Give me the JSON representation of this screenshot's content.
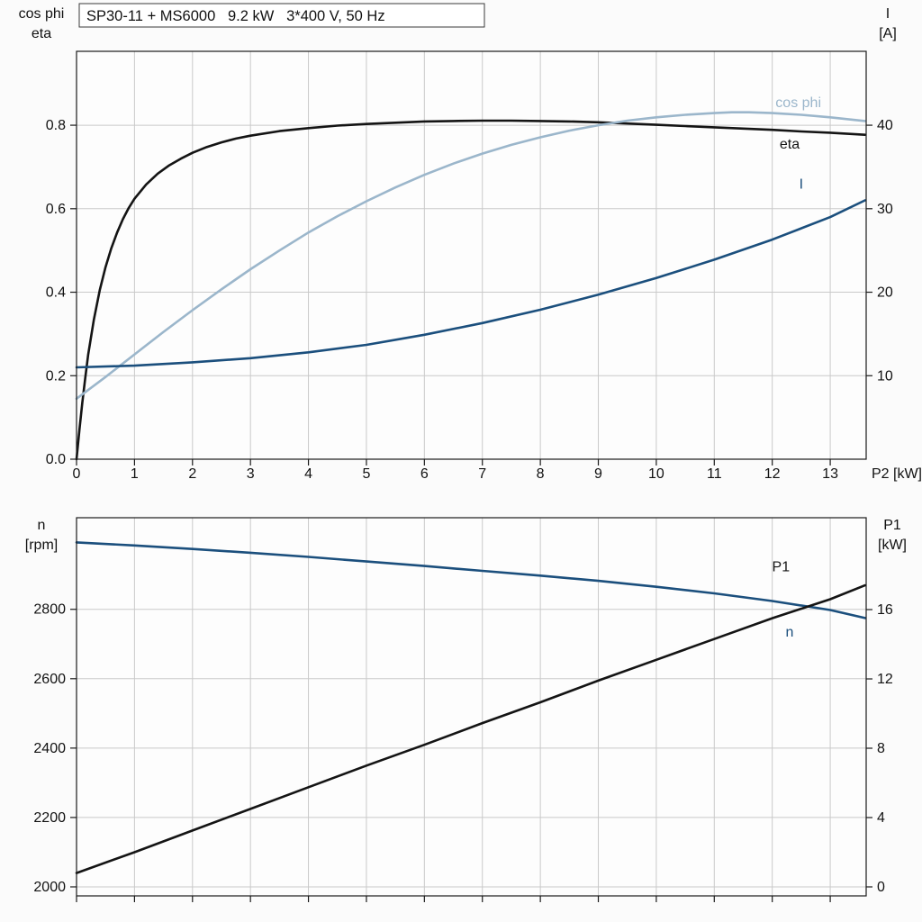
{
  "header": {
    "title": "SP30-11 + MS6000   9.2 kW   3*400 V, 50 Hz"
  },
  "colors": {
    "black_curve": "#141414",
    "cos_phi_curve": "#9bb6cb",
    "blue_curve": "#1b4f7d",
    "grid": "#c9c9c9",
    "axis": "#1a1a1a",
    "plot_bg": "#fdfdfd",
    "title_box_bg": "#ffffff",
    "title_box_border": "#3a3a3a",
    "text": "#111111"
  },
  "chart_data": [
    {
      "type": "line",
      "title": "SP30-11 + MS6000   9.2 kW   3*400 V, 50 Hz",
      "grid": true,
      "x_axis": {
        "label": "P2 [kW]",
        "min": 0,
        "max": 13.62,
        "ticks": [
          0,
          1,
          2,
          3,
          4,
          5,
          6,
          7,
          8,
          9,
          10,
          11,
          12,
          13
        ],
        "tick_labels": true
      },
      "left_axis": {
        "title_lines": [
          "cos phi",
          "eta"
        ],
        "min": 0,
        "max": 0.977,
        "ticks": [
          0.0,
          0.2,
          0.4,
          0.6,
          0.8
        ],
        "decimals": 1
      },
      "right_axis": {
        "title_lines": [
          "I",
          "[A]"
        ],
        "min": 0,
        "max": 48.85,
        "ticks": [
          10,
          20,
          30,
          40
        ],
        "decimals": 0
      },
      "series": [
        {
          "name": "eta",
          "axis": "left",
          "color_key": "black_curve",
          "stroke_width": 2.6,
          "label": {
            "text": "eta",
            "x": 12.3,
            "y": 0.744
          },
          "points": [
            [
              0,
              0
            ],
            [
              0.05,
              0.07
            ],
            [
              0.1,
              0.135
            ],
            [
              0.15,
              0.195
            ],
            [
              0.2,
              0.25
            ],
            [
              0.3,
              0.335
            ],
            [
              0.4,
              0.405
            ],
            [
              0.5,
              0.46
            ],
            [
              0.6,
              0.505
            ],
            [
              0.7,
              0.543
            ],
            [
              0.8,
              0.575
            ],
            [
              0.9,
              0.602
            ],
            [
              1,
              0.624
            ],
            [
              1.2,
              0.658
            ],
            [
              1.4,
              0.684
            ],
            [
              1.6,
              0.704
            ],
            [
              1.8,
              0.72
            ],
            [
              2,
              0.734
            ],
            [
              2.25,
              0.748
            ],
            [
              2.5,
              0.759
            ],
            [
              2.75,
              0.768
            ],
            [
              3,
              0.775
            ],
            [
              3.5,
              0.786
            ],
            [
              4,
              0.793
            ],
            [
              4.5,
              0.799
            ],
            [
              5,
              0.803
            ],
            [
              5.5,
              0.806
            ],
            [
              6,
              0.809
            ],
            [
              6.5,
              0.81
            ],
            [
              7,
              0.811
            ],
            [
              7.5,
              0.811
            ],
            [
              8,
              0.81
            ],
            [
              8.5,
              0.809
            ],
            [
              9,
              0.807
            ],
            [
              9.5,
              0.804
            ],
            [
              10,
              0.801
            ],
            [
              10.5,
              0.798
            ],
            [
              11,
              0.795
            ],
            [
              11.5,
              0.792
            ],
            [
              12,
              0.789
            ],
            [
              12.5,
              0.785
            ],
            [
              13,
              0.782
            ],
            [
              13.6,
              0.777
            ]
          ]
        },
        {
          "name": "cos phi",
          "axis": "left",
          "color_key": "cos_phi_curve",
          "stroke_width": 2.6,
          "label": {
            "text": "cos phi",
            "x": 12.45,
            "y": 0.843
          },
          "points": [
            [
              0,
              0.145
            ],
            [
              0.5,
              0.197
            ],
            [
              1,
              0.251
            ],
            [
              1.5,
              0.305
            ],
            [
              2,
              0.357
            ],
            [
              2.5,
              0.407
            ],
            [
              3,
              0.455
            ],
            [
              3.5,
              0.5
            ],
            [
              4,
              0.543
            ],
            [
              4.5,
              0.582
            ],
            [
              5,
              0.618
            ],
            [
              5.5,
              0.651
            ],
            [
              6,
              0.681
            ],
            [
              6.5,
              0.708
            ],
            [
              7,
              0.732
            ],
            [
              7.5,
              0.753
            ],
            [
              8,
              0.771
            ],
            [
              8.5,
              0.787
            ],
            [
              9,
              0.8
            ],
            [
              9.5,
              0.811
            ],
            [
              10,
              0.819
            ],
            [
              10.5,
              0.825
            ],
            [
              11,
              0.829
            ],
            [
              11.3,
              0.831
            ],
            [
              11.6,
              0.831
            ],
            [
              12,
              0.829
            ],
            [
              12.5,
              0.825
            ],
            [
              13,
              0.819
            ],
            [
              13.6,
              0.81
            ]
          ]
        },
        {
          "name": "I",
          "axis": "right",
          "color_key": "blue_curve",
          "stroke_width": 2.6,
          "label": {
            "text": "I",
            "x": 12.5,
            "y": 32.4
          },
          "points": [
            [
              0,
              11
            ],
            [
              1,
              11.2
            ],
            [
              2,
              11.6
            ],
            [
              3,
              12.1
            ],
            [
              4,
              12.8
            ],
            [
              5,
              13.7
            ],
            [
              6,
              14.9
            ],
            [
              7,
              16.3
            ],
            [
              8,
              17.9
            ],
            [
              9,
              19.7
            ],
            [
              10,
              21.7
            ],
            [
              11,
              23.9
            ],
            [
              12,
              26.3
            ],
            [
              13,
              29
            ],
            [
              13.6,
              31
            ]
          ]
        }
      ]
    },
    {
      "type": "line",
      "grid": true,
      "x_axis": {
        "label": "",
        "min": 0,
        "max": 13.62,
        "ticks": [
          0,
          1,
          2,
          3,
          4,
          5,
          6,
          7,
          8,
          9,
          10,
          11,
          12,
          13
        ],
        "tick_labels": false
      },
      "left_axis": {
        "title_lines": [
          "n",
          "[rpm]"
        ],
        "min": 1974,
        "max": 3064,
        "ticks": [
          2000,
          2200,
          2400,
          2600,
          2800
        ],
        "decimals": 0
      },
      "right_axis": {
        "title_lines": [
          "P1",
          "[kW]"
        ],
        "min": -0.52,
        "max": 21.3,
        "ticks": [
          0,
          4,
          8,
          12,
          16
        ],
        "decimals": 0
      },
      "series": [
        {
          "name": "n",
          "axis": "left",
          "color_key": "blue_curve",
          "stroke_width": 2.6,
          "label": {
            "text": "n",
            "x": 12.3,
            "y": 2722
          },
          "points": [
            [
              0,
              2993
            ],
            [
              1,
              2984
            ],
            [
              2,
              2974
            ],
            [
              3,
              2963
            ],
            [
              4,
              2951
            ],
            [
              5,
              2938
            ],
            [
              6,
              2925
            ],
            [
              7,
              2911
            ],
            [
              8,
              2897
            ],
            [
              9,
              2882
            ],
            [
              10,
              2865
            ],
            [
              11,
              2846
            ],
            [
              12,
              2824
            ],
            [
              13,
              2798
            ],
            [
              13.6,
              2775
            ]
          ]
        },
        {
          "name": "P1",
          "axis": "right",
          "color_key": "black_curve",
          "stroke_width": 2.6,
          "label": {
            "text": "P1",
            "x": 12.15,
            "y": 18.2
          },
          "points": [
            [
              0,
              0.8
            ],
            [
              1,
              2.0
            ],
            [
              2,
              3.25
            ],
            [
              3,
              4.5
            ],
            [
              4,
              5.75
            ],
            [
              5,
              7.0
            ],
            [
              6,
              8.2
            ],
            [
              7,
              9.45
            ],
            [
              8,
              10.65
            ],
            [
              9,
              11.9
            ],
            [
              10,
              13.1
            ],
            [
              11,
              14.3
            ],
            [
              12,
              15.5
            ],
            [
              13,
              16.6
            ],
            [
              13.6,
              17.4
            ]
          ]
        }
      ]
    }
  ]
}
